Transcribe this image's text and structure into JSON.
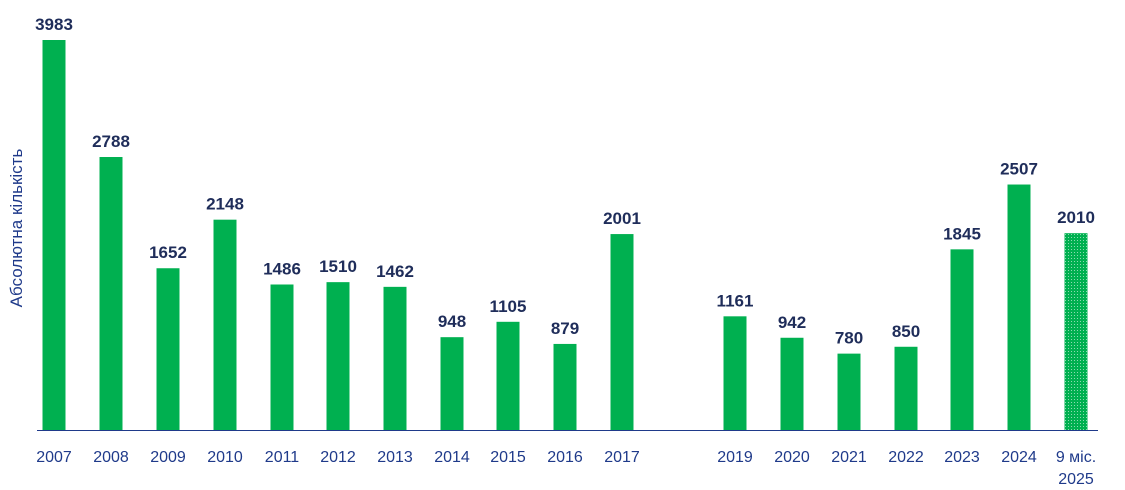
{
  "chart_data": {
    "type": "bar",
    "title": "",
    "xlabel": "",
    "ylabel": "Абсолютна кількість",
    "ylim": [
      0,
      3983
    ],
    "grid": false,
    "legend": "none",
    "colors": {
      "bar": "#00b050",
      "hatched_bar": "#00b050",
      "axis": "#1f3a8a",
      "tick_text": "#1f3a8a",
      "value_text": "#1f2d5a"
    },
    "categories": [
      "2007",
      "2008",
      "2009",
      "2010",
      "2011",
      "2012",
      "2013",
      "2014",
      "2015",
      "2016",
      "2017",
      "2019",
      "2020",
      "2021",
      "2022",
      "2023",
      "2024",
      "9 міс. 2025"
    ],
    "category_lines": [
      [
        "2007"
      ],
      [
        "2008"
      ],
      [
        "2009"
      ],
      [
        "2010"
      ],
      [
        "2011"
      ],
      [
        "2012"
      ],
      [
        "2013"
      ],
      [
        "2014"
      ],
      [
        "2015"
      ],
      [
        "2016"
      ],
      [
        "2017"
      ],
      [
        "2019"
      ],
      [
        "2020"
      ],
      [
        "2021"
      ],
      [
        "2022"
      ],
      [
        "2023"
      ],
      [
        "2024"
      ],
      [
        "9 міс.",
        "2025"
      ]
    ],
    "values": [
      3983,
      2788,
      1652,
      2148,
      1486,
      1510,
      1462,
      948,
      1105,
      879,
      2001,
      1161,
      942,
      780,
      850,
      1845,
      2507,
      2010
    ],
    "value_labels": [
      "3983",
      "2788",
      "1652",
      "2148",
      "1486",
      "1510",
      "1462",
      "948",
      "1105",
      "879",
      "2001",
      "1161",
      "942",
      "780",
      "850",
      "1845",
      "2507",
      "2010"
    ],
    "partial_period": [
      false,
      false,
      false,
      false,
      false,
      false,
      false,
      false,
      false,
      false,
      false,
      false,
      false,
      false,
      false,
      false,
      false,
      true
    ]
  }
}
